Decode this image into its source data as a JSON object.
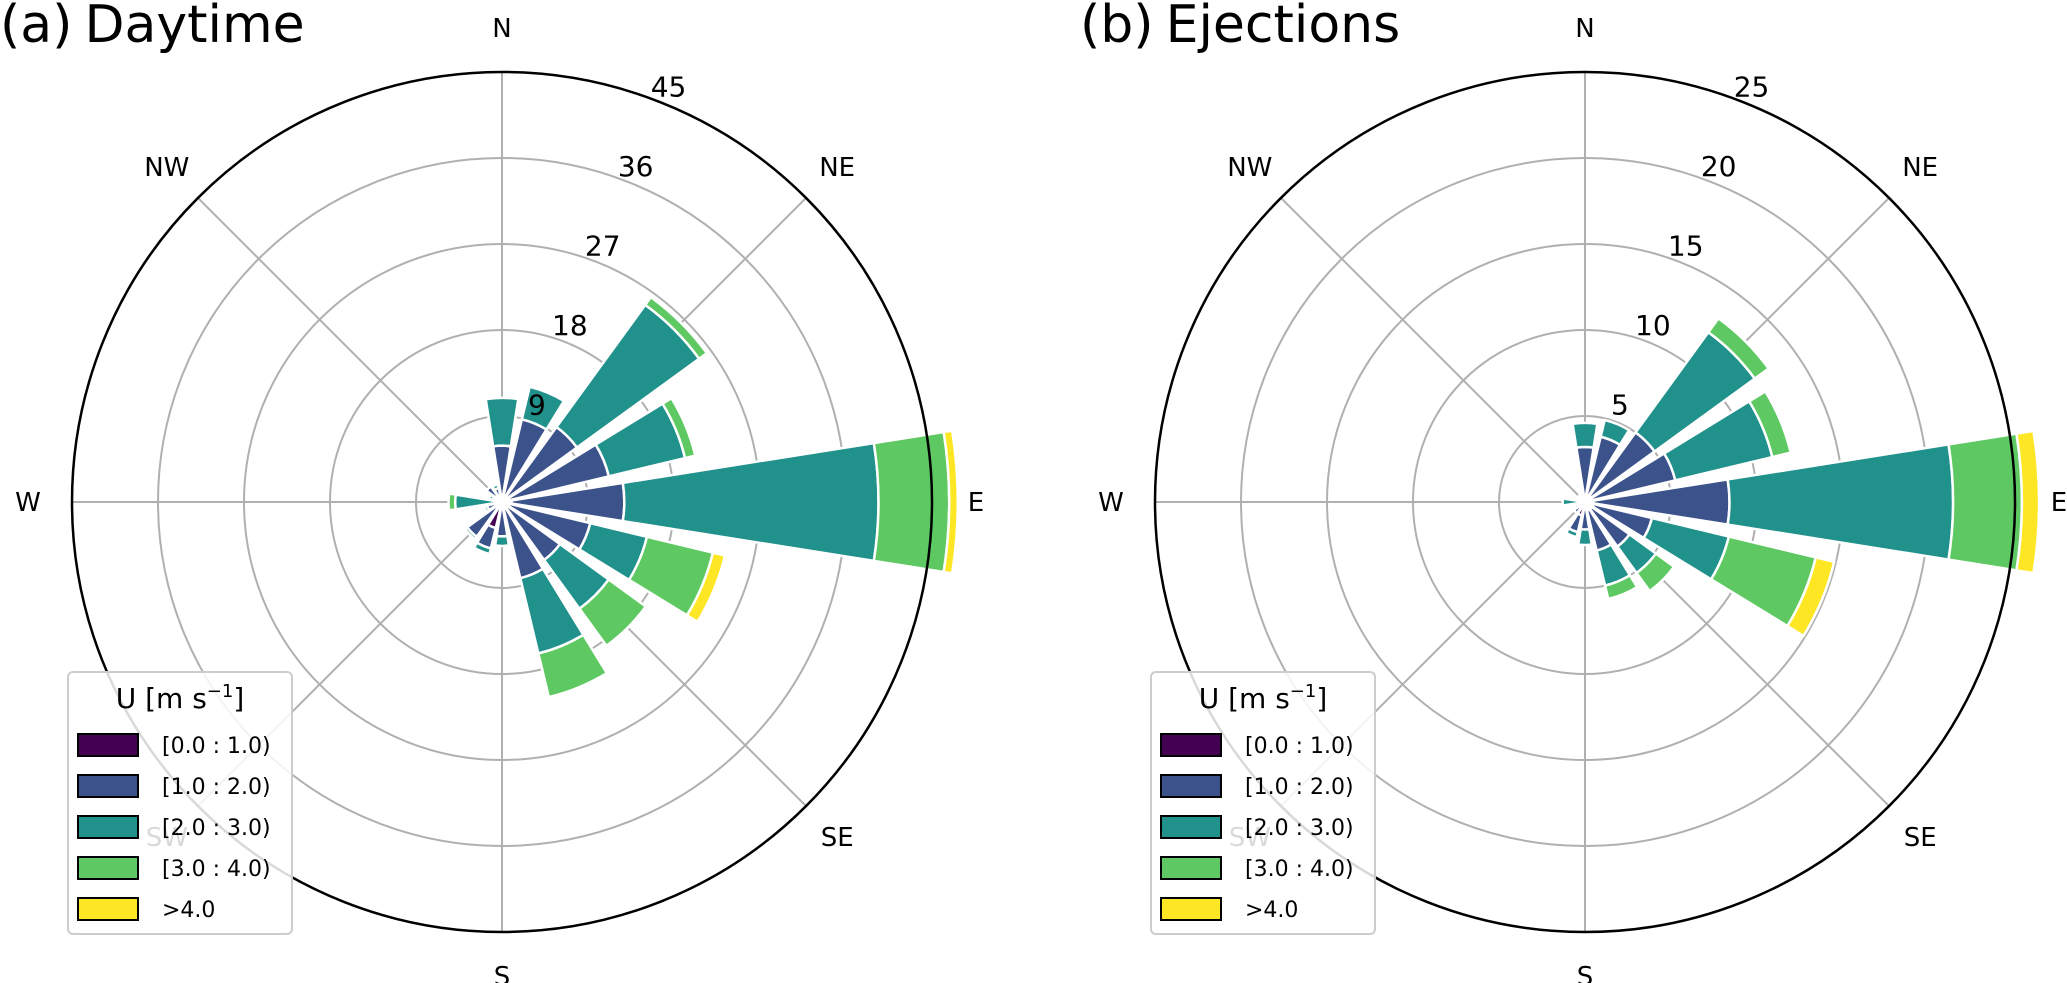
{
  "chart_data": [
    {
      "type": "windrose",
      "panel_label": "(a)",
      "title": "Daytime",
      "radial_ticks": [
        9,
        18,
        27,
        36,
        45
      ],
      "rmax": 45,
      "directions": [
        "N",
        "NNE",
        "NE",
        "ENE",
        "E",
        "ESE",
        "SE",
        "SSE",
        "S",
        "SSW",
        "SW",
        "WSW",
        "W",
        "WNW",
        "NW",
        "NNW"
      ],
      "direction_labels": [
        "N",
        "NE",
        "E",
        "SE",
        "S",
        "SW",
        "W",
        "NW"
      ],
      "legend": {
        "title": "U [m s",
        "title_sup": "−1",
        "title_end": "]",
        "placement": "lower-left",
        "bins": [
          "[0.0 : 1.0)",
          "[1.0 : 2.0)",
          "[2.0 : 3.0)",
          "[3.0 : 4.0)",
          ">4.0"
        ],
        "colors": [
          "#440154",
          "#3b528b",
          "#21918c",
          "#5ec962",
          "#fde725"
        ]
      },
      "series": [
        {
          "name": "[0.0 : 1.0)",
          "values": [
            0.3,
            0.5,
            0.6,
            0.8,
            1.0,
            0.8,
            0.6,
            0.8,
            0.5,
            2.8,
            0.8,
            0.4,
            0.3,
            0.3,
            0.8,
            0.3
          ]
        },
        {
          "name": "[1.0 : 2.0)",
          "values": [
            5.6,
            8.4,
            9.1,
            10.7,
            11.8,
            8.7,
            6.9,
            7.4,
            3.1,
            2.2,
            3.7,
            1.2,
            0.4,
            0.7,
            1.2,
            1.2
          ]
        },
        {
          "name": "[2.0 : 3.0)",
          "values": [
            5.0,
            3.5,
            15.8,
            8.2,
            26.6,
            6.1,
            6.3,
            8.1,
            1.0,
            0.6,
            0.3,
            0.3,
            4.2,
            0.4,
            0.0,
            0.4
          ]
        },
        {
          "name": "[3.0 : 4.0)",
          "values": [
            0.0,
            0.0,
            1.0,
            1.1,
            7.4,
            7.1,
            4.8,
            4.7,
            0.0,
            0.0,
            0.0,
            0.0,
            0.7,
            0.0,
            0.0,
            0.0
          ]
        },
        {
          "name": ">4.0",
          "values": [
            0.0,
            0.0,
            0.0,
            0.0,
            0.9,
            1.3,
            0.0,
            0.0,
            0.0,
            0.0,
            0.0,
            0.0,
            0.0,
            0.0,
            0.0,
            0.0
          ]
        }
      ]
    },
    {
      "type": "windrose",
      "panel_label": "(b)",
      "title": "Ejections",
      "radial_ticks": [
        5,
        10,
        15,
        20,
        25
      ],
      "rmax": 25,
      "directions": [
        "N",
        "NNE",
        "NE",
        "ENE",
        "E",
        "ESE",
        "SE",
        "SSE",
        "S",
        "SSW",
        "SW",
        "WSW",
        "W",
        "WNW",
        "NW",
        "NNW"
      ],
      "direction_labels": [
        "N",
        "NE",
        "E",
        "SE",
        "S",
        "SW",
        "W",
        "NW"
      ],
      "legend": {
        "title": "U [m s",
        "title_sup": "−1",
        "title_end": "]",
        "placement": "lower-left",
        "bins": [
          "[0.0 : 1.0)",
          "[1.0 : 2.0)",
          "[2.0 : 3.0)",
          "[3.0 : 4.0)",
          ">4.0"
        ],
        "colors": [
          "#440154",
          "#3b528b",
          "#21918c",
          "#5ec962",
          "#fde725"
        ]
      },
      "series": [
        {
          "name": "[0.0 : 1.0)",
          "values": [
            0.3,
            0.4,
            0.4,
            0.4,
            0.5,
            0.5,
            0.5,
            0.5,
            0.4,
            0.8,
            0.3,
            0.3,
            0.2,
            0.2,
            0.2,
            0.2
          ]
        },
        {
          "name": "[1.0 : 2.0)",
          "values": [
            2.9,
            3.5,
            4.6,
            5.0,
            7.9,
            3.5,
            2.7,
            2.4,
            1.2,
            1.0,
            0.5,
            0.3,
            0.2,
            0.3,
            0.3,
            0.3
          ]
        },
        {
          "name": "[2.0 : 3.0)",
          "values": [
            1.4,
            1.0,
            7.2,
            5.8,
            13.0,
            4.6,
            1.9,
            2.1,
            0.9,
            0.3,
            0.0,
            0.0,
            0.9,
            0.0,
            0.0,
            0.0
          ]
        },
        {
          "name": "[3.0 : 4.0)",
          "values": [
            0.0,
            0.0,
            1.0,
            1.1,
            4.0,
            5.2,
            1.3,
            0.8,
            0.0,
            0.0,
            0.0,
            0.0,
            0.0,
            0.0,
            0.0,
            0.0
          ]
        },
        {
          "name": ">4.0",
          "values": [
            0.0,
            0.0,
            0.0,
            0.0,
            1.0,
            1.1,
            0.0,
            0.0,
            0.0,
            0.0,
            0.0,
            0.0,
            0.0,
            0.0,
            0.0,
            0.0
          ]
        }
      ]
    }
  ]
}
